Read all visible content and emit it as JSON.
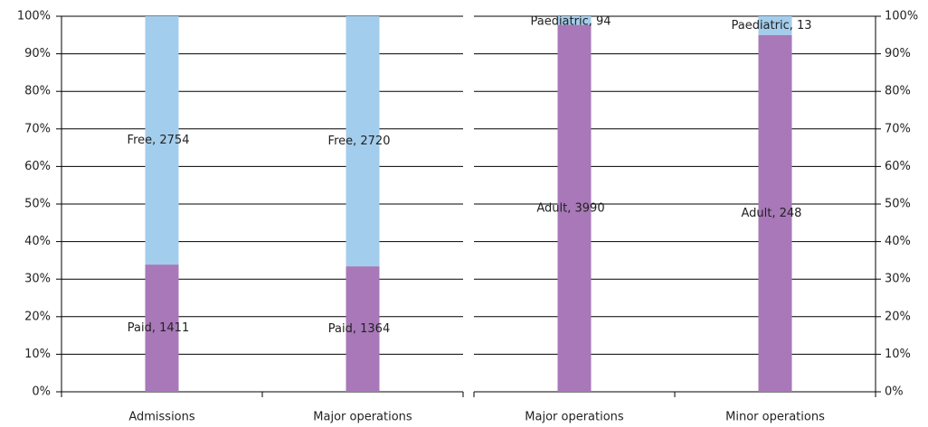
{
  "chart_data": [
    {
      "type": "bar",
      "stack": "percent",
      "y_axis_side": "left",
      "grid": true,
      "categories": [
        "Admissions",
        "Major operations"
      ],
      "series": [
        {
          "name": "Paid",
          "color": "#a878b8",
          "values": [
            1411,
            1364
          ],
          "value_labels": [
            "Paid, 1411",
            "Paid, 1364"
          ]
        },
        {
          "name": "Free",
          "color": "#a3cdec",
          "values": [
            2754,
            2720
          ],
          "value_labels": [
            "Free, 2754",
            "Free, 2720"
          ]
        }
      ],
      "ylim": [
        0,
        100
      ],
      "yticks": [
        {
          "value": 0,
          "label": "0%"
        },
        {
          "value": 10,
          "label": "10%"
        },
        {
          "value": 20,
          "label": "20%"
        },
        {
          "value": 30,
          "label": "30%"
        },
        {
          "value": 40,
          "label": "40%"
        },
        {
          "value": 50,
          "label": "50%"
        },
        {
          "value": 60,
          "label": "60%"
        },
        {
          "value": 70,
          "label": "70%"
        },
        {
          "value": 80,
          "label": "80%"
        },
        {
          "value": 90,
          "label": "90%"
        },
        {
          "value": 100,
          "label": "100%"
        }
      ]
    },
    {
      "type": "bar",
      "stack": "percent",
      "y_axis_side": "right",
      "grid": true,
      "categories": [
        "Major operations",
        "Minor operations"
      ],
      "series": [
        {
          "name": "Adult",
          "color": "#a878b8",
          "values": [
            3990,
            248
          ],
          "value_labels": [
            "Adult, 3990",
            "Adult, 248"
          ]
        },
        {
          "name": "Paediatric",
          "color": "#a3cdec",
          "values": [
            94,
            13
          ],
          "value_labels": [
            "Paediatric, 94",
            "Paediatric, 13"
          ]
        }
      ],
      "ylim": [
        0,
        100
      ],
      "yticks": [
        {
          "value": 0,
          "label": "0%"
        },
        {
          "value": 10,
          "label": "10%"
        },
        {
          "value": 20,
          "label": "20%"
        },
        {
          "value": 30,
          "label": "30%"
        },
        {
          "value": 40,
          "label": "40%"
        },
        {
          "value": 50,
          "label": "50%"
        },
        {
          "value": 60,
          "label": "60%"
        },
        {
          "value": 70,
          "label": "70%"
        },
        {
          "value": 80,
          "label": "80%"
        },
        {
          "value": 90,
          "label": "90%"
        },
        {
          "value": 100,
          "label": "100%"
        }
      ]
    }
  ]
}
